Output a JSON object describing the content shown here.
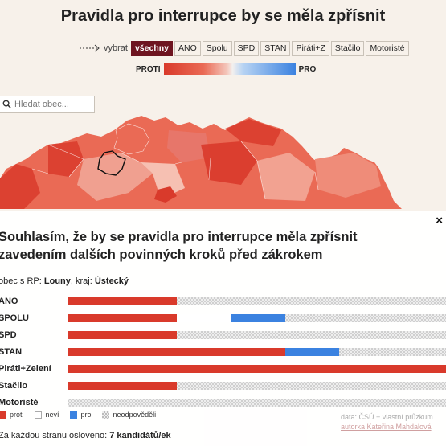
{
  "title": "Pravidla pro interrupce by se měla zpřísnit",
  "filter": {
    "label": "vybrat",
    "options": [
      "všechny",
      "ANO",
      "Spolu",
      "SPD",
      "STAN",
      "Piráti+Z",
      "Stačilo",
      "Motoristé"
    ],
    "active": "všechny"
  },
  "scale": {
    "left": "PROTI",
    "right": "PRO"
  },
  "search": {
    "placeholder": "Hledat obec..."
  },
  "panel": {
    "question": "Souhlasím, že by se pravidla pro interrupce měla zpřísnit zavedením dalších povinných kroků před zákrokem",
    "place_label": "obec s RP:",
    "place_name": "Louny",
    "region_label": ", kraj:",
    "region_name": "Ústecký",
    "close": "×",
    "rows": [
      {
        "label": "ANO",
        "proti": 28.6,
        "nevi": 0,
        "pro": 0
      },
      {
        "label": "SPOLU",
        "proti": 28.6,
        "nevi": 14.3,
        "pro": 14.3
      },
      {
        "label": "SPD",
        "proti": 28.6,
        "nevi": 0,
        "pro": 0
      },
      {
        "label": "STAN",
        "proti": 57.1,
        "nevi": 0,
        "pro": 14.3
      },
      {
        "label": "Piráti+Zelení",
        "proti": 100,
        "nevi": 0,
        "pro": 0
      },
      {
        "label": "Stačilo",
        "proti": 28.6,
        "nevi": 0,
        "pro": 0
      },
      {
        "label": "Motoristé",
        "proti": 0,
        "nevi": 0,
        "pro": 0
      }
    ],
    "legend": [
      "proti",
      "neví",
      "pro",
      "neodpověděli"
    ],
    "footnote_text": "Za každou stranu osloveno:",
    "footnote_value": "7 kandidátů/ek"
  },
  "source": {
    "line1": "data: ČSÚ + vlastní průzkum",
    "line2": "autorka Kateřina Mahdalová"
  },
  "colors": {
    "proti": "#d93a2b",
    "nevi": "#ffffff",
    "pro": "#3b82e0",
    "active_chip": "#6e1420",
    "background": "#f7f1ea"
  }
}
